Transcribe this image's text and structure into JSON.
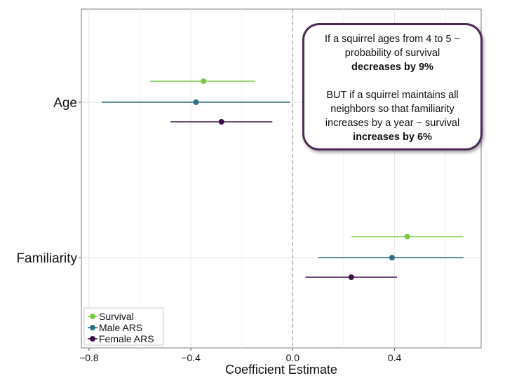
{
  "chart_data": {
    "type": "scatter",
    "subtype": "coefficient-plot-with-error-bars",
    "title": "",
    "xlabel": "Coefficient Estimate",
    "ylabel": "",
    "xlim": [
      -0.83,
      0.74
    ],
    "xticks": [
      -0.8,
      -0.4,
      0.0,
      0.4
    ],
    "xtick_labels": [
      "−0.8",
      "−0.4",
      "0.0",
      "0.4"
    ],
    "categories": [
      "Age",
      "Familiarity"
    ],
    "reference_line": {
      "x": 0,
      "style": "dashed"
    },
    "legend_position": "bottom-left",
    "grid": true,
    "series": [
      {
        "name": "Survival",
        "color": "#79c944",
        "points": [
          {
            "category": "Age",
            "estimate": -0.35,
            "lower": -0.56,
            "upper": -0.15
          },
          {
            "category": "Familiarity",
            "estimate": 0.45,
            "lower": 0.23,
            "upper": 0.67
          }
        ]
      },
      {
        "name": "Male ARS",
        "color": "#2c6f86",
        "points": [
          {
            "category": "Age",
            "estimate": -0.38,
            "lower": -0.75,
            "upper": -0.01
          },
          {
            "category": "Familiarity",
            "estimate": 0.39,
            "lower": 0.1,
            "upper": 0.67
          }
        ]
      },
      {
        "name": "Female ARS",
        "color": "#3d0e47",
        "points": [
          {
            "category": "Age",
            "estimate": -0.28,
            "lower": -0.48,
            "upper": -0.08
          },
          {
            "category": "Familiarity",
            "estimate": 0.23,
            "lower": 0.05,
            "upper": 0.41
          }
        ]
      }
    ]
  },
  "callout": {
    "line1": "If a squirrel ages from 4 to 5 −",
    "line2": "probability of survival",
    "line3_bold": "decreases by 9%",
    "line4": "BUT if a squirrel maintains all",
    "line5": "neighbors so that familiarity",
    "line6": "increases by a year − survival",
    "line7_bold": "increases by 6%"
  }
}
